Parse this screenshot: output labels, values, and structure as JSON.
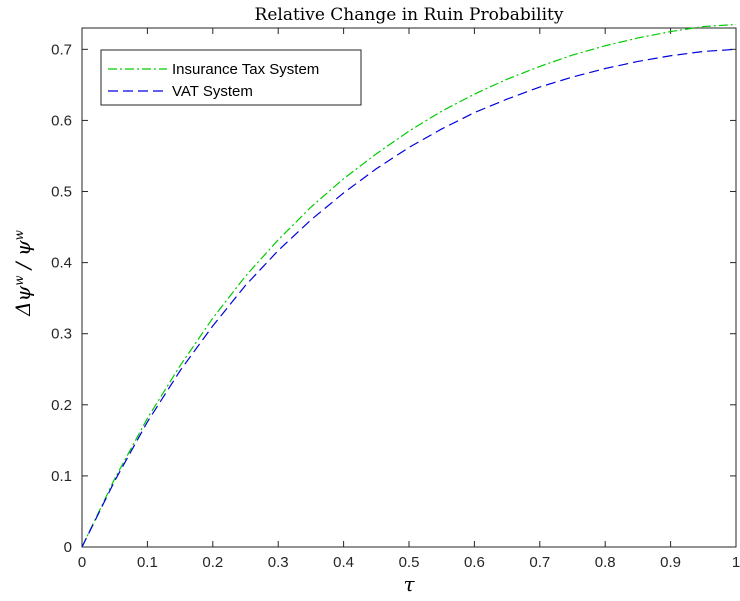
{
  "chart_data": {
    "type": "line",
    "title": "Relative Change in Ruin Probability",
    "xlabel": "τ",
    "ylabel": "Δψ^w / ψ^w",
    "xlim": [
      0,
      1
    ],
    "ylim": [
      0,
      0.73
    ],
    "xticks": [
      "0",
      "0.1",
      "0.2",
      "0.3",
      "0.4",
      "0.5",
      "0.6",
      "0.7",
      "0.8",
      "0.9",
      "1"
    ],
    "yticks": [
      "0",
      "0.1",
      "0.2",
      "0.3",
      "0.4",
      "0.5",
      "0.6",
      "0.7"
    ],
    "grid": false,
    "legend_position": "top-left",
    "x": [
      0,
      0.05,
      0.1,
      0.15,
      0.2,
      0.25,
      0.3,
      0.35,
      0.4,
      0.45,
      0.5,
      0.55,
      0.6,
      0.65,
      0.7,
      0.75,
      0.8,
      0.85,
      0.9,
      0.95,
      1.0
    ],
    "series": [
      {
        "name": "Insurance Tax System",
        "color": "#00cc00",
        "style": "dash-dot",
        "values": [
          0,
          0.096,
          0.181,
          0.255,
          0.322,
          0.381,
          0.432,
          0.478,
          0.518,
          0.553,
          0.585,
          0.613,
          0.637,
          0.658,
          0.676,
          0.692,
          0.705,
          0.716,
          0.725,
          0.732,
          0.735
        ]
      },
      {
        "name": "VAT System",
        "color": "#0000dd",
        "style": "dashed",
        "values": [
          0,
          0.093,
          0.176,
          0.248,
          0.311,
          0.368,
          0.417,
          0.46,
          0.498,
          0.532,
          0.562,
          0.588,
          0.611,
          0.63,
          0.647,
          0.661,
          0.673,
          0.683,
          0.691,
          0.697,
          0.7
        ]
      }
    ]
  }
}
